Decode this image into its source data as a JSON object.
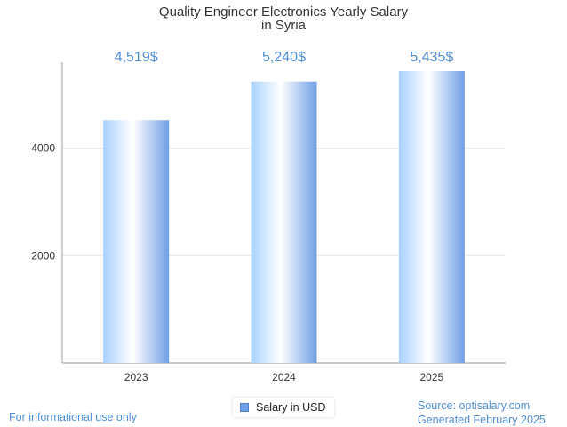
{
  "chart_data": {
    "type": "bar",
    "title": [
      "Quality Engineer Electronics Yearly Salary",
      "in Syria"
    ],
    "categories": [
      "2023",
      "2024",
      "2025"
    ],
    "series": [
      {
        "name": "Salary in USD",
        "values": [
          4519,
          5240,
          5435
        ],
        "data_labels": [
          "4,519$",
          "5,240$",
          "5,435$"
        ]
      }
    ],
    "yticks": [
      2000,
      4000
    ],
    "ylim": [
      0,
      5600
    ],
    "grid": true,
    "legend": "bottom-center",
    "colors": {
      "bar_light": "#ffffff",
      "bar_mid": "#bfe0ff",
      "bar_dark": "#6f9fe6",
      "label": "#4f8ed8"
    }
  },
  "footer": {
    "left": "For informational use only",
    "source": "Source: optisalary.com",
    "generated": "Generated February 2025"
  }
}
